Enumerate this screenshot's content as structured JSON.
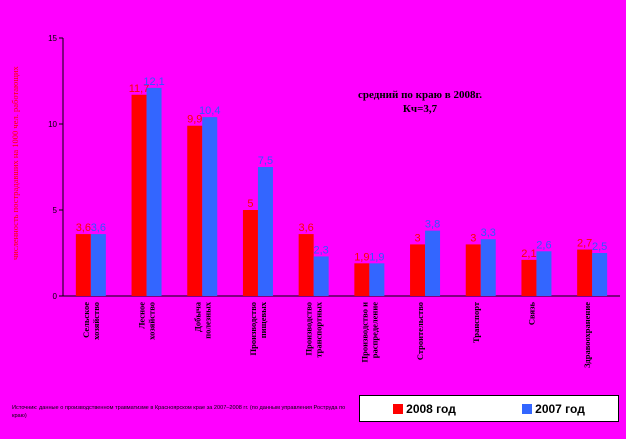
{
  "chart_data": {
    "type": "bar",
    "ylabel": "численность пострадавших на 1000 чел. работающих",
    "ylim": [
      0,
      15
    ],
    "yticks": [
      0,
      5,
      10,
      15
    ],
    "categories": [
      [
        "Сельское",
        "хозяйство"
      ],
      [
        "Лесное",
        "хозяйство"
      ],
      [
        "Добыча",
        "полезных"
      ],
      [
        "Производство",
        "пищевых"
      ],
      [
        "Производство",
        "транспортных"
      ],
      [
        "Производство и",
        "распределение"
      ],
      [
        "Строительство"
      ],
      [
        "Транспорт"
      ],
      [
        "Связь"
      ],
      [
        "Здравоохранение"
      ]
    ],
    "series": [
      {
        "name": "2008 год",
        "color": "#ff0000",
        "values": [
          3.6,
          11.7,
          9.9,
          5,
          3.6,
          1.9,
          3,
          3,
          2.1,
          2.7
        ],
        "labels": [
          "3,6",
          "11,7",
          "9,9",
          "5",
          "3,6",
          "1,9",
          "3",
          "3",
          "2,1",
          "2,7"
        ]
      },
      {
        "name": "2007 год",
        "color": "#3366ff",
        "values": [
          3.6,
          12.1,
          10.4,
          7.5,
          2.3,
          1.9,
          3.8,
          3.3,
          2.6,
          2.5
        ],
        "labels": [
          "3,6",
          "12,1",
          "10,4",
          "7,5",
          "2,3",
          "1,9",
          "3,8",
          "3,3",
          "2,6",
          "2,5"
        ]
      }
    ],
    "annotation": [
      "средний по краю в 2008г.",
      "Кч=3,7"
    ],
    "source": "Источник: данные о производственном травматизме в Красноярском крае за 2007–2008 гг. (по данным управления Роструда по краю)",
    "grid": false,
    "legend_position": "bottom-right"
  }
}
